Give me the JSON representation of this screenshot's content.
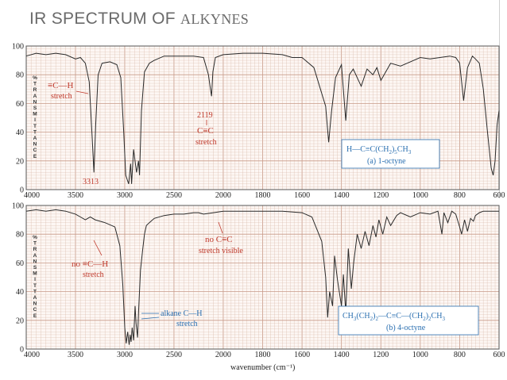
{
  "slide": {
    "title_main": "IR SPECTRUM OF",
    "title_tail": "ALKYNES"
  },
  "colors": {
    "grid": "#d9b8a8",
    "grid_major": "#c89a88",
    "trace": "#2a2a2a",
    "annotation": "#c0392b",
    "compound_box": "#2a6fb0",
    "axis_text": "#222222"
  },
  "y_axis_label": [
    "%",
    "T",
    "R",
    "A",
    "N",
    "S",
    "M",
    "I",
    "T",
    "T",
    "A",
    "N",
    "C",
    "E"
  ],
  "chart_data": [
    {
      "type": "line",
      "x_scale": "reversed-piecewise (2x expansion below 2000)",
      "xlim": [
        4000,
        600
      ],
      "ylim": [
        0,
        100
      ],
      "x_ticks": [
        "4000",
        "3500",
        "3000",
        "2500",
        "2000",
        "1800",
        "1600",
        "1400",
        "1200",
        "1000",
        "800",
        "600"
      ],
      "y_ticks": [
        "0",
        "20",
        "40",
        "60",
        "80",
        "100"
      ],
      "compound_formula": [
        "H",
        "—",
        "C",
        "≡",
        "C(CH",
        "2",
        ")",
        "5",
        "CH",
        "3"
      ],
      "compound_name": "(a) 1-octyne",
      "annotations": {
        "ch_line1": "≡C—H",
        "ch_line2": "stretch",
        "ch_value": "3313",
        "cc_value": "2119",
        "cc_line1": "C≡C",
        "cc_line2": "stretch"
      },
      "series": [
        {
          "x": [
            4000,
            3900,
            3800,
            3700,
            3600,
            3500,
            3450,
            3400,
            3360,
            3330,
            3313,
            3295,
            3270,
            3230,
            3150,
            3080,
            3040,
            3010,
            2990,
            2960,
            2940,
            2930,
            2910,
            2880,
            2860,
            2850,
            2830,
            2800,
            2750,
            2700,
            2600,
            2500,
            2400,
            2300,
            2200,
            2150,
            2130,
            2119,
            2105,
            2080,
            2000,
            1900,
            1800,
            1700,
            1650,
            1600,
            1540,
            1480,
            1465,
            1450,
            1430,
            1400,
            1378,
            1360,
            1340,
            1300,
            1270,
            1240,
            1220,
            1200,
            1150,
            1100,
            1050,
            1000,
            950,
            900,
            850,
            820,
            800,
            780,
            760,
            735,
            720,
            700,
            680,
            660,
            640,
            630,
            620,
            610,
            600
          ],
          "y": [
            93,
            95,
            94,
            95,
            94,
            91,
            92,
            88,
            75,
            35,
            12,
            45,
            80,
            88,
            89,
            87,
            78,
            40,
            10,
            4,
            18,
            4,
            28,
            12,
            20,
            10,
            55,
            82,
            88,
            90,
            93,
            93,
            93,
            93,
            92,
            80,
            70,
            65,
            82,
            92,
            94,
            95,
            95,
            94,
            92,
            92,
            85,
            58,
            33,
            55,
            78,
            87,
            48,
            80,
            84,
            72,
            84,
            80,
            85,
            76,
            88,
            86,
            89,
            92,
            91,
            92,
            93,
            92,
            88,
            62,
            85,
            93,
            91,
            88,
            70,
            42,
            15,
            10,
            20,
            45,
            55
          ]
        }
      ]
    },
    {
      "type": "line",
      "x_scale": "reversed-piecewise (2x expansion below 2000)",
      "xlim": [
        4000,
        600
      ],
      "ylim": [
        0,
        100
      ],
      "x_ticks": [
        "4000",
        "3500",
        "3000",
        "2500",
        "2000",
        "1800",
        "1600",
        "1400",
        "1200",
        "1000",
        "800",
        "600"
      ],
      "y_ticks": [
        "0",
        "20",
        "40",
        "60",
        "80",
        "100"
      ],
      "xlabel": "wavenumber (cm⁻¹)",
      "compound_formula": [
        "CH",
        "3",
        "(CH",
        "2",
        ")",
        "2",
        "—C≡C—(CH",
        "2",
        ")",
        "2",
        "CH",
        "3"
      ],
      "compound_name": "(b) 4-octyne",
      "annotations": {
        "no_ch_line1": "no  ≡C—H",
        "no_ch_line2": "stretch",
        "no_cc_line1": "no C≡C",
        "no_cc_line2": "stretch visible",
        "alkane_line1": "alkane C—H",
        "alkane_line2": "stretch"
      },
      "series": [
        {
          "x": [
            4000,
            3900,
            3800,
            3700,
            3600,
            3500,
            3450,
            3400,
            3350,
            3300,
            3200,
            3100,
            3050,
            3020,
            3000,
            2985,
            2970,
            2955,
            2945,
            2935,
            2925,
            2910,
            2895,
            2885,
            2870,
            2860,
            2840,
            2820,
            2800,
            2780,
            2750,
            2700,
            2600,
            2500,
            2400,
            2300,
            2250,
            2200,
            2100,
            2000,
            1900,
            1800,
            1700,
            1600,
            1550,
            1500,
            1480,
            1470,
            1460,
            1445,
            1435,
            1420,
            1400,
            1390,
            1378,
            1365,
            1350,
            1338,
            1320,
            1300,
            1280,
            1260,
            1240,
            1225,
            1210,
            1190,
            1170,
            1150,
            1120,
            1100,
            1050,
            1000,
            950,
            910,
            890,
            880,
            860,
            840,
            820,
            800,
            790,
            775,
            760,
            745,
            730,
            720,
            700,
            680,
            650,
            600
          ],
          "y": [
            96,
            97,
            96,
            97,
            96,
            94,
            92,
            90,
            92,
            90,
            88,
            85,
            72,
            45,
            15,
            4,
            12,
            3,
            10,
            5,
            15,
            6,
            30,
            18,
            8,
            25,
            55,
            68,
            80,
            86,
            88,
            91,
            93,
            94,
            94,
            95,
            95,
            94,
            95,
            96,
            96,
            96,
            96,
            95,
            92,
            75,
            50,
            22,
            40,
            30,
            65,
            48,
            30,
            52,
            25,
            70,
            42,
            60,
            80,
            70,
            82,
            72,
            86,
            78,
            90,
            80,
            92,
            86,
            93,
            95,
            92,
            95,
            94,
            96,
            80,
            95,
            88,
            96,
            94,
            85,
            80,
            90,
            82,
            91,
            89,
            93,
            95,
            96,
            96,
            96
          ]
        }
      ]
    }
  ]
}
